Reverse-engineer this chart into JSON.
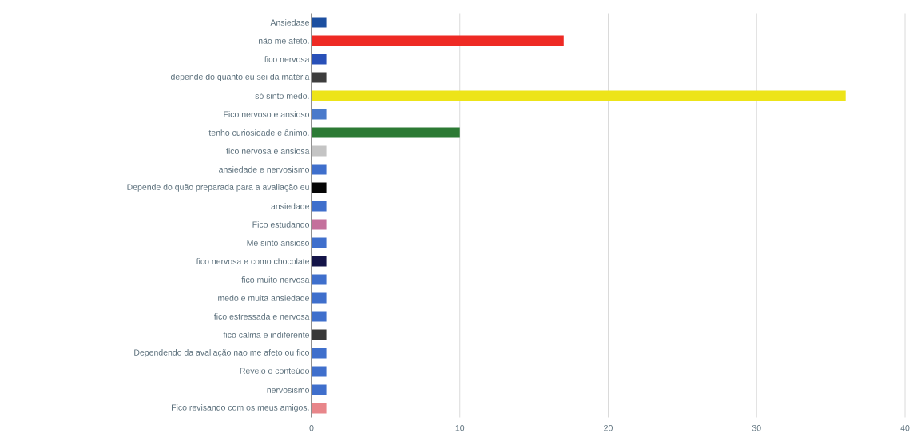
{
  "chart_data": {
    "type": "bar",
    "orientation": "horizontal",
    "categories": [
      "Ansiedase",
      "não me afeto.",
      "fico nervosa",
      "depende do quanto eu sei da matéria",
      "só sinto medo.",
      "Fico nervoso e ansioso",
      "tenho curiosidade e ânimo.",
      "fico nervosa e ansiosa",
      "ansiedade e nervosismo",
      "Depende do quão preparada para a avaliação eu",
      "ansiedade",
      "Fico estudando",
      "Me sinto ansioso",
      "fico nervosa e como chocolate",
      "fico muito nervosa",
      "medo e muita ansiedade",
      "fico estressada e nervosa",
      "fico calma e indiferente",
      "Dependendo da avaliação nao me afeto ou fico",
      "Revejo o conteúdo",
      "nervosismo",
      "Fico revisando com os meus amigos."
    ],
    "values": [
      1,
      17,
      1,
      1,
      36,
      1,
      10,
      1,
      1,
      1,
      1,
      1,
      1,
      1,
      1,
      1,
      1,
      1,
      1,
      1,
      1,
      1
    ],
    "colors": [
      "#1c4fa0",
      "#ee2a24",
      "#2850b8",
      "#3d3d3d",
      "#ede419",
      "#4a7acb",
      "#2c7a34",
      "#c4c4c4",
      "#3f6fcc",
      "#050505",
      "#3f6fcc",
      "#c4709c",
      "#3f6fcc",
      "#141448",
      "#3f6fcc",
      "#3f6fcc",
      "#3f6fcc",
      "#383838",
      "#3f6fcc",
      "#3f6fcc",
      "#3f6fcc",
      "#e8868a"
    ],
    "xlim": [
      0,
      40
    ],
    "xticks": [
      0,
      10,
      20,
      30,
      40
    ],
    "grid": "x"
  }
}
